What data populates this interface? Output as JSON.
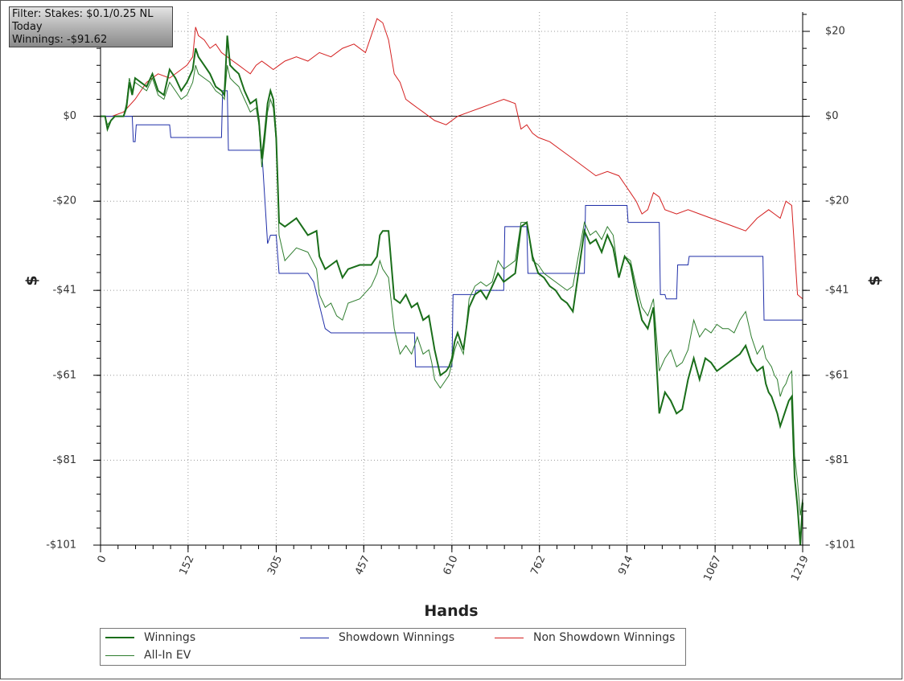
{
  "filter_box": {
    "line1": "Filter: Stakes: $0.1/0.25 NL",
    "line2": "Today",
    "line3": "Winnings: -$91.62"
  },
  "chart_data": {
    "type": "line",
    "xlabel": "Hands",
    "ylabel": "$",
    "xlim": [
      0,
      1219
    ],
    "ylim": [
      -101,
      20
    ],
    "x_ticks": [
      0,
      152,
      305,
      457,
      610,
      762,
      914,
      1067,
      1219
    ],
    "x_tick_labels": [
      "0",
      "152",
      "305",
      "457",
      "610",
      "762",
      "914",
      "1067",
      "1219"
    ],
    "y_ticks": [
      20,
      0,
      -20,
      -41,
      -61,
      -81,
      -101
    ],
    "y_tick_labels": [
      "$20",
      "$0",
      "-$20",
      "-$41",
      "-$61",
      "-$81",
      "-$101"
    ],
    "grid": true,
    "legend_position": "bottom",
    "series": [
      {
        "name": "Winnings",
        "color": "#1a6e1a",
        "thick": true,
        "x": [
          0,
          8,
          12,
          18,
          25,
          32,
          40,
          45,
          50,
          55,
          60,
          70,
          80,
          90,
          100,
          110,
          120,
          130,
          140,
          150,
          160,
          165,
          170,
          180,
          190,
          200,
          210,
          215,
          220,
          225,
          232,
          240,
          250,
          260,
          270,
          275,
          280,
          285,
          290,
          295,
          300,
          305,
          310,
          320,
          340,
          360,
          375,
          380,
          390,
          400,
          410,
          420,
          430,
          450,
          470,
          480,
          485,
          490,
          500,
          510,
          520,
          530,
          540,
          550,
          560,
          570,
          575,
          580,
          590,
          600,
          605,
          610,
          615,
          620,
          630,
          640,
          650,
          660,
          670,
          680,
          690,
          700,
          710,
          720,
          730,
          740,
          750,
          760,
          770,
          780,
          790,
          800,
          810,
          820,
          840,
          850,
          860,
          870,
          880,
          890,
          900,
          910,
          920,
          930,
          940,
          950,
          960,
          970,
          980,
          990,
          1000,
          1010,
          1020,
          1030,
          1040,
          1050,
          1060,
          1070,
          1080,
          1090,
          1100,
          1110,
          1120,
          1130,
          1140,
          1150,
          1155,
          1160,
          1165,
          1170,
          1175,
          1180,
          1185,
          1190,
          1195,
          1200,
          1205,
          1210,
          1215,
          1219
        ],
        "y": [
          0,
          0,
          -3,
          -1,
          0,
          0,
          0,
          2,
          8,
          5,
          9,
          8,
          7,
          10,
          6,
          5,
          11,
          9,
          6,
          8,
          11,
          16,
          14,
          12,
          10,
          7,
          6,
          5,
          19,
          12,
          11,
          10,
          6,
          3,
          4,
          -1,
          -10,
          -4,
          3,
          6,
          4,
          -5,
          -25,
          -26,
          -24,
          -28,
          -27,
          -33,
          -36,
          -35,
          -34,
          -38,
          -36,
          -35,
          -35,
          -33,
          -28,
          -27,
          -27,
          -43,
          -44,
          -42,
          -45,
          -44,
          -48,
          -47,
          -51,
          -55,
          -61,
          -60,
          -59,
          -57,
          -53,
          -51,
          -55,
          -45,
          -42,
          -41,
          -43,
          -40,
          -37,
          -39,
          -38,
          -37,
          -26,
          -25,
          -33,
          -37,
          -38,
          -40,
          -41,
          -43,
          -44,
          -46,
          -27,
          -30,
          -29,
          -32,
          -28,
          -31,
          -38,
          -33,
          -35,
          -42,
          -48,
          -50,
          -45,
          -70,
          -65,
          -67,
          -70,
          -69,
          -62,
          -57,
          -62,
          -57,
          -58,
          -60,
          -59,
          -58,
          -57,
          -56,
          -54,
          -58,
          -60,
          -59,
          -63,
          -65,
          -66,
          -68,
          -70,
          -73,
          -71,
          -69,
          -67,
          -66,
          -85,
          -92,
          -101,
          -91
        ]
      },
      {
        "name": "All-In EV",
        "color": "#2e7d2e",
        "thick": false,
        "x": [
          0,
          8,
          12,
          18,
          25,
          32,
          40,
          45,
          50,
          55,
          60,
          70,
          80,
          90,
          100,
          110,
          120,
          130,
          140,
          150,
          160,
          165,
          170,
          180,
          190,
          200,
          210,
          215,
          220,
          225,
          232,
          240,
          250,
          260,
          270,
          275,
          280,
          285,
          290,
          295,
          300,
          305,
          310,
          320,
          340,
          360,
          375,
          380,
          390,
          400,
          410,
          420,
          430,
          450,
          470,
          480,
          485,
          490,
          500,
          510,
          520,
          530,
          540,
          550,
          560,
          570,
          575,
          580,
          590,
          600,
          605,
          610,
          615,
          620,
          630,
          640,
          650,
          660,
          670,
          680,
          690,
          700,
          710,
          720,
          730,
          740,
          750,
          760,
          770,
          780,
          790,
          800,
          810,
          820,
          840,
          850,
          860,
          870,
          880,
          890,
          900,
          910,
          920,
          930,
          940,
          950,
          960,
          970,
          980,
          990,
          1000,
          1010,
          1020,
          1030,
          1040,
          1050,
          1060,
          1070,
          1080,
          1090,
          1100,
          1110,
          1120,
          1130,
          1140,
          1150,
          1155,
          1160,
          1165,
          1170,
          1175,
          1180,
          1185,
          1190,
          1195,
          1200,
          1205,
          1210,
          1215,
          1219
        ],
        "y": [
          0,
          0,
          -2,
          -1,
          0,
          0,
          0,
          3,
          9,
          6,
          8,
          7,
          6,
          9,
          5,
          4,
          8,
          6,
          4,
          5,
          8,
          12,
          10,
          9,
          8,
          6,
          5,
          4,
          12,
          9,
          8,
          7,
          4,
          1,
          2,
          -2,
          -12,
          -6,
          1,
          4,
          2,
          -6,
          -28,
          -34,
          -31,
          -32,
          -36,
          -42,
          -45,
          -44,
          -47,
          -48,
          -44,
          -43,
          -40,
          -37,
          -34,
          -36,
          -38,
          -50,
          -56,
          -54,
          -56,
          -52,
          -56,
          -55,
          -58,
          -62,
          -64,
          -62,
          -61,
          -58,
          -55,
          -53,
          -56,
          -43,
          -40,
          -39,
          -40,
          -39,
          -34,
          -36,
          -35,
          -34,
          -25,
          -25,
          -34,
          -35,
          -37,
          -38,
          -39,
          -40,
          -41,
          -40,
          -25,
          -28,
          -27,
          -29,
          -26,
          -28,
          -38,
          -33,
          -34,
          -40,
          -45,
          -47,
          -43,
          -60,
          -57,
          -55,
          -59,
          -58,
          -55,
          -48,
          -52,
          -50,
          -51,
          -49,
          -50,
          -50,
          -51,
          -48,
          -46,
          -52,
          -56,
          -54,
          -57,
          -58,
          -59,
          -61,
          -62,
          -66,
          -64,
          -63,
          -61,
          -60,
          -80,
          -86,
          -94,
          -90
        ]
      },
      {
        "name": "Showdown Winnings",
        "color": "#1f2ea8",
        "thick": false,
        "x": [
          0,
          55,
          57,
          60,
          62,
          120,
          122,
          200,
          210,
          212,
          220,
          222,
          250,
          280,
          290,
          295,
          305,
          310,
          320,
          330,
          360,
          370,
          390,
          400,
          440,
          500,
          510,
          545,
          547,
          590,
          592,
          610,
          612,
          650,
          652,
          700,
          702,
          740,
          742,
          800,
          802,
          840,
          842,
          914,
          916,
          970,
          972,
          980,
          982,
          1000,
          1002,
          1020,
          1022,
          1060,
          1062,
          1150,
          1152,
          1180,
          1182,
          1219
        ],
        "y": [
          0,
          0,
          -6,
          -6,
          -2,
          -2,
          -5,
          -5,
          -5,
          6,
          6,
          -8,
          -8,
          -8,
          -30,
          -28,
          -28,
          -37,
          -37,
          -37,
          -37,
          -39,
          -50,
          -51,
          -51,
          -51,
          -51,
          -51,
          -59,
          -59,
          -59,
          -59,
          -42,
          -42,
          -41,
          -41,
          -26,
          -26,
          -37,
          -37,
          -37,
          -37,
          -21,
          -21,
          -25,
          -25,
          -42,
          -42,
          -43,
          -43,
          -35,
          -35,
          -33,
          -33,
          -33,
          -33,
          -48,
          -48,
          -48,
          -48
        ]
      },
      {
        "name": "Non Showdown Winnings",
        "color": "#d42020",
        "thick": false,
        "x": [
          0,
          20,
          40,
          60,
          80,
          100,
          120,
          140,
          150,
          160,
          165,
          170,
          180,
          190,
          200,
          210,
          220,
          230,
          240,
          250,
          260,
          270,
          280,
          290,
          300,
          310,
          320,
          340,
          360,
          380,
          400,
          420,
          440,
          460,
          480,
          490,
          500,
          510,
          520,
          530,
          540,
          550,
          560,
          580,
          600,
          620,
          640,
          660,
          680,
          700,
          720,
          730,
          740,
          750,
          760,
          780,
          800,
          820,
          840,
          860,
          880,
          900,
          910,
          920,
          930,
          940,
          950,
          960,
          970,
          980,
          1000,
          1020,
          1040,
          1060,
          1080,
          1100,
          1120,
          1140,
          1160,
          1170,
          1180,
          1190,
          1200,
          1210,
          1219
        ],
        "y": [
          0,
          0,
          1,
          4,
          8,
          10,
          9,
          11,
          12,
          14,
          21,
          19,
          18,
          16,
          17,
          15,
          14,
          13,
          12,
          11,
          10,
          12,
          13,
          12,
          11,
          12,
          13,
          14,
          13,
          15,
          14,
          16,
          17,
          15,
          23,
          22,
          18,
          10,
          8,
          4,
          3,
          2,
          1,
          -1,
          -2,
          0,
          1,
          2,
          3,
          4,
          3,
          -3,
          -2,
          -4,
          -5,
          -6,
          -8,
          -10,
          -12,
          -14,
          -13,
          -14,
          -16,
          -18,
          -20,
          -23,
          -22,
          -18,
          -19,
          -22,
          -23,
          -22,
          -23,
          -24,
          -25,
          -26,
          -27,
          -24,
          -22,
          -23,
          -24,
          -20,
          -21,
          -42,
          -43
        ]
      }
    ]
  }
}
